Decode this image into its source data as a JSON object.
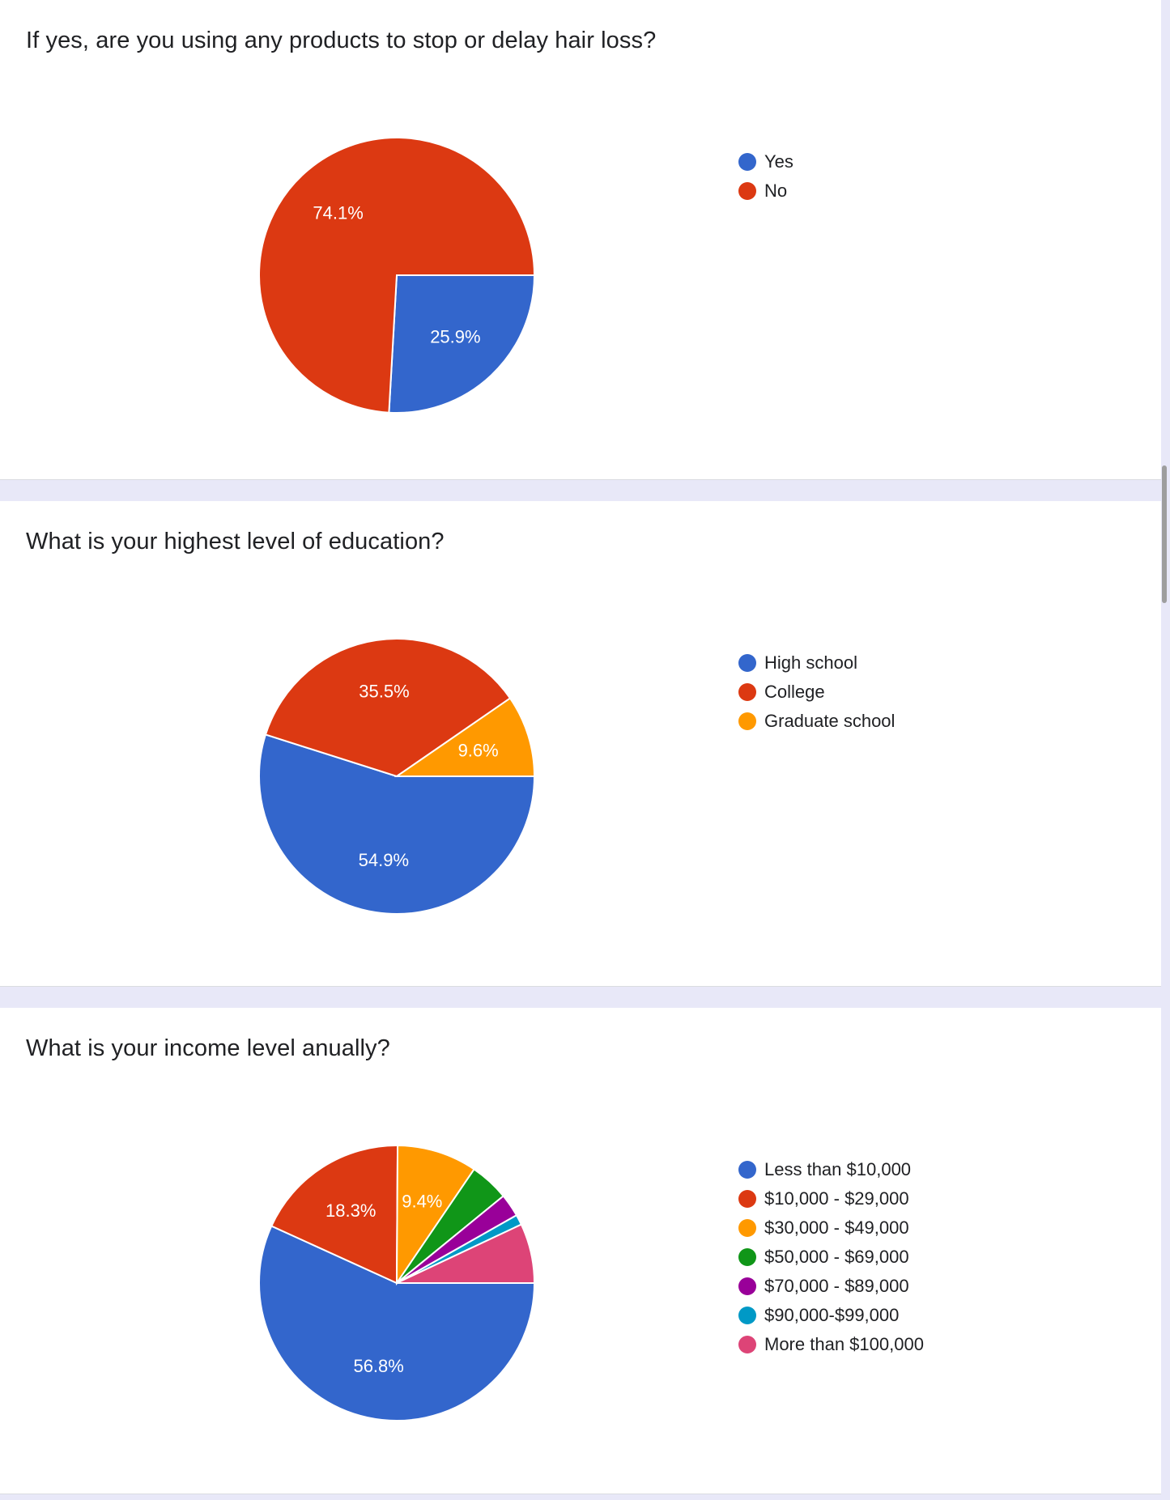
{
  "colors": {
    "blue": "#3366cc",
    "red": "#dc3912",
    "orange": "#ff9900",
    "green": "#109618",
    "purple": "#990099",
    "teal": "#0099c6",
    "pink": "#dd4477"
  },
  "chart_data": [
    {
      "type": "pie",
      "title": "If yes, are you using any products to stop or delay hair loss?",
      "slices": [
        {
          "label": "Yes",
          "value": 25.9,
          "display": "25.9%",
          "color": "#3366cc"
        },
        {
          "label": "No",
          "value": 74.1,
          "display": "74.1%",
          "color": "#dc3912"
        }
      ],
      "legend_position": "right"
    },
    {
      "type": "pie",
      "title": "What is your highest level of education?",
      "slices": [
        {
          "label": "High school",
          "value": 54.9,
          "display": "54.9%",
          "color": "#3366cc"
        },
        {
          "label": "College",
          "value": 35.5,
          "display": "35.5%",
          "color": "#dc3912"
        },
        {
          "label": "Graduate school",
          "value": 9.6,
          "display": "9.6%",
          "color": "#ff9900"
        }
      ],
      "legend_position": "right"
    },
    {
      "type": "pie",
      "title": "What is your income level anually?",
      "slices": [
        {
          "label": "Less than $10,000",
          "value": 56.8,
          "display": "56.8%",
          "color": "#3366cc"
        },
        {
          "label": "$10,000 - $29,000",
          "value": 18.3,
          "display": "18.3%",
          "color": "#dc3912"
        },
        {
          "label": "$30,000 - $49,000",
          "value": 9.4,
          "display": "9.4%",
          "color": "#ff9900"
        },
        {
          "label": "$50,000 - $69,000",
          "value": 4.6,
          "display": "",
          "color": "#109618"
        },
        {
          "label": "$70,000 - $89,000",
          "value": 2.7,
          "display": "",
          "color": "#990099"
        },
        {
          "label": "$90,000-$99,000",
          "value": 1.2,
          "display": "",
          "color": "#0099c6"
        },
        {
          "label": "More than $100,000",
          "value": 7.0,
          "display": "",
          "color": "#dd4477"
        }
      ],
      "legend_position": "right"
    }
  ]
}
